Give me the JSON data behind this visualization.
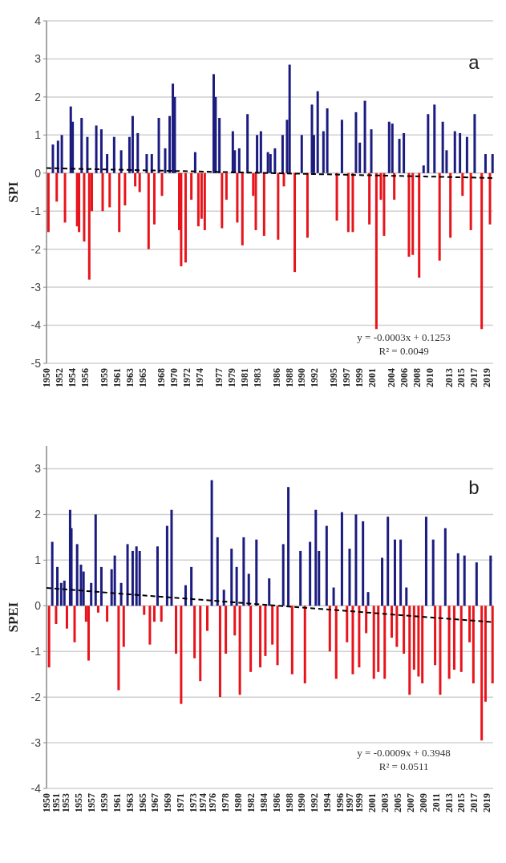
{
  "chart_data": [
    {
      "type": "bar",
      "title": "a",
      "ylabel": "SPI",
      "xlim": [
        1950,
        2020
      ],
      "ylim": [
        -5,
        4
      ],
      "yticks": [
        -5,
        -4,
        -3,
        -2,
        -1,
        0,
        1,
        2,
        3,
        4
      ],
      "grid": "y",
      "xticks": [
        1950,
        1952,
        1954,
        1956,
        1959,
        1961,
        1963,
        1965,
        1968,
        1970,
        1972,
        1974,
        1977,
        1979,
        1981,
        1983,
        1986,
        1988,
        1990,
        1992,
        1995,
        1997,
        1999,
        2001,
        2004,
        2006,
        2008,
        2010,
        2013,
        2015,
        2017,
        2019
      ],
      "series": [
        {
          "color": "#1c1c80",
          "x": [
            1951.0,
            1951.8,
            1952.4,
            1953.8,
            1954.1,
            1955.5,
            1956.4,
            1957.8,
            1958.6,
            1959.5,
            1960.6,
            1961.7,
            1963.0,
            1963.5,
            1964.3,
            1965.7,
            1966.5,
            1967.6,
            1968.6,
            1969.3,
            1969.8,
            1970.1,
            1973.3,
            1976.2,
            1976.5,
            1977.1,
            1979.2,
            1979.5,
            1980.2,
            1981.5,
            1983.0,
            1983.6,
            1984.7,
            1985.1,
            1985.8,
            1987.0,
            1987.7,
            1988.1,
            1990.0,
            1991.6,
            1991.9,
            1992.5,
            1993.4,
            1994.0,
            1996.3,
            1998.5,
            1999.1,
            1999.9,
            2000.9,
            2003.7,
            2004.2,
            2005.3,
            2006.0,
            2009.1,
            2009.8,
            2010.8,
            2012.1,
            2012.7,
            2014.0,
            2014.8,
            2015.9,
            2017.1,
            2018.8,
            2019.9
          ],
          "values": [
            0.75,
            0.85,
            1.0,
            1.75,
            1.35,
            1.45,
            0.95,
            1.25,
            1.15,
            0.5,
            0.95,
            0.6,
            0.95,
            1.5,
            1.05,
            0.5,
            0.5,
            1.45,
            0.65,
            1.5,
            2.35,
            2.0,
            0.55,
            2.6,
            2.0,
            1.45,
            1.1,
            0.6,
            0.65,
            1.55,
            1.0,
            1.1,
            0.55,
            0.5,
            0.65,
            1.0,
            1.4,
            2.85,
            1.0,
            1.8,
            1.0,
            2.15,
            1.1,
            1.7,
            1.4,
            1.6,
            0.8,
            1.9,
            1.15,
            1.35,
            1.3,
            0.9,
            1.05,
            0.2,
            1.55,
            1.8,
            1.35,
            0.6,
            1.1,
            1.05,
            0.95,
            1.55,
            0.5,
            0.5
          ]
        },
        {
          "color": "#e8141c",
          "x": [
            1950.3,
            1951.6,
            1952.9,
            1954.8,
            1955.1,
            1955.9,
            1956.7,
            1957.1,
            1958.8,
            1959.9,
            1961.4,
            1962.3,
            1963.9,
            1964.6,
            1966.0,
            1966.9,
            1968.1,
            1970.8,
            1971.1,
            1971.8,
            1972.7,
            1973.8,
            1974.3,
            1974.8,
            1977.5,
            1978.2,
            1979.9,
            1980.7,
            1982.4,
            1982.8,
            1984.1,
            1986.3,
            1987.2,
            1988.9,
            1990.9,
            1995.5,
            1997.3,
            1998.0,
            2000.6,
            2001.7,
            2002.4,
            2002.9,
            2004.5,
            2006.8,
            2007.4,
            2008.4,
            2011.6,
            2013.3,
            2015.2,
            2016.5,
            2018.2,
            2019.5
          ],
          "values": [
            -1.55,
            -0.75,
            -1.3,
            -1.4,
            -1.55,
            -1.8,
            -2.8,
            -1.0,
            -1.0,
            -0.9,
            -1.55,
            -0.85,
            -0.35,
            -0.5,
            -2.0,
            -1.35,
            -0.6,
            -1.5,
            -2.45,
            -2.35,
            -0.7,
            -1.4,
            -1.2,
            -1.5,
            -1.45,
            -0.7,
            -1.3,
            -1.9,
            -0.6,
            -1.5,
            -1.65,
            -1.75,
            -0.35,
            -2.6,
            -1.7,
            -1.25,
            -1.55,
            -1.55,
            -1.35,
            -4.1,
            -0.7,
            -1.65,
            -0.7,
            -2.2,
            -2.15,
            -2.75,
            -2.3,
            -1.7,
            -0.6,
            -1.5,
            -4.1,
            -1.35
          ]
        },
        {
          "type": "line",
          "color": "#000000",
          "line_style": "dashed",
          "x": [
            1950,
            2020
          ],
          "values": [
            0.13,
            -0.13
          ]
        }
      ],
      "annotations": [
        "y = -0.0003x + 0.1253",
        "R² = 0.0049"
      ]
    },
    {
      "type": "bar",
      "title": "b",
      "ylabel": "SPEI",
      "xlim": [
        1950,
        2020
      ],
      "ylim": [
        -4,
        3.5
      ],
      "yticks": [
        -4,
        -3,
        -2,
        -1,
        0,
        1,
        2,
        3
      ],
      "grid": "y",
      "xticks": [
        1950,
        {
          "value": 1951.45,
          "label": "1951"
        },
        1953,
        1955,
        1957,
        1959,
        1961,
        1963,
        1965,
        1967,
        1969,
        1971,
        1973,
        {
          "value": 1974.45,
          "label": "1974"
        },
        1976,
        1978,
        1980,
        1982,
        1984,
        1986,
        1988,
        1990,
        1992,
        1994,
        1996,
        {
          "value": 1997.45,
          "label": "1997"
        },
        1999,
        2001,
        2003,
        2005,
        2007,
        2009,
        2011,
        2013,
        2015,
        2017,
        2019
      ],
      "series": [
        {
          "color": "#1c1c80",
          "x": [
            1950.9,
            1951.7,
            1952.3,
            1952.8,
            1953.7,
            1953.9,
            1954.8,
            1955.4,
            1955.8,
            1957.0,
            1957.7,
            1958.6,
            1960.2,
            1960.7,
            1961.7,
            1962.7,
            1963.5,
            1964.1,
            1964.6,
            1967.4,
            1968.9,
            1969.6,
            1971.8,
            1972.7,
            1975.9,
            1976.8,
            1977.8,
            1979.0,
            1979.8,
            1980.9,
            1981.7,
            1982.9,
            1984.9,
            1987.1,
            1987.9,
            1989.8,
            1991.3,
            1992.2,
            1992.7,
            1993.9,
            1995.0,
            1996.3,
            1997.5,
            1998.5,
            1999.6,
            2000.4,
            2002.6,
            2003.5,
            2004.6,
            2005.5,
            2006.4,
            2009.5,
            2010.6,
            2012.5,
            2014.5,
            2015.5,
            2017.4,
            2019.6
          ],
          "values": [
            1.4,
            0.85,
            0.5,
            0.55,
            2.1,
            1.7,
            1.35,
            0.9,
            0.75,
            0.5,
            2.0,
            0.85,
            0.8,
            1.1,
            0.5,
            1.35,
            1.2,
            1.3,
            1.2,
            1.3,
            1.75,
            2.1,
            0.45,
            0.85,
            2.75,
            1.5,
            0.35,
            1.25,
            0.85,
            1.5,
            0.7,
            1.45,
            0.6,
            1.35,
            2.6,
            1.2,
            1.4,
            2.1,
            1.2,
            1.75,
            0.4,
            2.05,
            1.25,
            2.0,
            1.85,
            0.3,
            1.05,
            1.95,
            1.45,
            1.45,
            0.4,
            1.95,
            1.45,
            1.7,
            1.15,
            1.1,
            0.95,
            1.1
          ]
        },
        {
          "color": "#e8141c",
          "x": [
            1950.4,
            1951.5,
            1953.2,
            1954.4,
            1956.2,
            1956.6,
            1958.1,
            1959.5,
            1961.3,
            1962.1,
            1965.3,
            1966.2,
            1966.9,
            1968.0,
            1970.3,
            1971.1,
            1973.2,
            1974.1,
            1975.2,
            1977.2,
            1978.1,
            1979.5,
            1980.3,
            1982.0,
            1983.5,
            1984.3,
            1985.4,
            1986.2,
            1988.5,
            1990.5,
            1994.4,
            1995.4,
            1997.1,
            1998.0,
            1999.0,
            2000.1,
            2001.3,
            2002.0,
            2003.0,
            2004.1,
            2004.9,
            2006.0,
            2006.9,
            2007.6,
            2008.3,
            2008.9,
            2010.9,
            2011.7,
            2013.1,
            2013.9,
            2015.0,
            2016.3,
            2016.9,
            2018.2,
            2018.8,
            2019.9
          ],
          "values": [
            -1.35,
            -0.4,
            -0.5,
            -0.8,
            -0.35,
            -1.2,
            -0.15,
            -0.35,
            -1.85,
            -0.9,
            -0.2,
            -0.85,
            -0.35,
            -0.35,
            -1.05,
            -2.15,
            -1.15,
            -1.65,
            -0.55,
            -2.0,
            -1.05,
            -0.65,
            -1.95,
            -1.45,
            -1.35,
            -1.1,
            -0.85,
            -1.3,
            -1.5,
            -1.7,
            -1.0,
            -1.6,
            -0.8,
            -1.5,
            -1.35,
            -0.6,
            -1.6,
            -1.45,
            -1.6,
            -0.7,
            -0.9,
            -1.05,
            -1.95,
            -1.4,
            -1.55,
            -1.7,
            -1.3,
            -1.95,
            -1.6,
            -1.4,
            -1.45,
            -0.8,
            -1.7,
            -2.95,
            -2.1,
            -1.7
          ]
        },
        {
          "type": "line",
          "color": "#000000",
          "line_style": "dashed",
          "x": [
            1950,
            2020
          ],
          "values": [
            0.39,
            -0.36
          ]
        }
      ],
      "annotations": [
        "y = -0.0009x + 0.3948",
        "R² = 0.0511"
      ]
    }
  ]
}
